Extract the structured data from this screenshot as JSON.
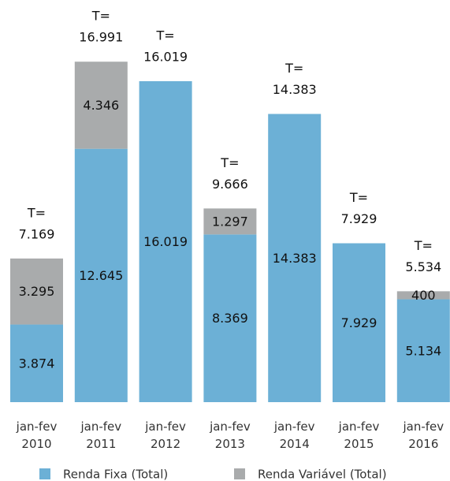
{
  "chart_data": {
    "type": "stacked_bar",
    "categories": [
      "jan-fev 2010",
      "jan-fev 2011",
      "jan-fev 2012",
      "jan-fev 2013",
      "jan-fev 2014",
      "jan-fev 2015",
      "jan-fev 2016"
    ],
    "series": [
      {
        "name": "Renda Fixa (Total)",
        "color": "#6cb0d6",
        "values": [
          3874,
          12645,
          16019,
          8369,
          14383,
          7929,
          5134
        ],
        "value_labels": [
          "3.874",
          "12.645",
          "16.019",
          "8.369",
          "14.383",
          "7.929",
          "5.134"
        ]
      },
      {
        "name": "Renda Variável (Total)",
        "color": "#a9abac",
        "values": [
          3295,
          4346,
          null,
          1297,
          null,
          null,
          400
        ],
        "value_labels": [
          "3.295",
          "4.346",
          null,
          "1.297",
          null,
          null,
          "400"
        ]
      }
    ],
    "totals": {
      "prefix": "T=",
      "values": [
        7169,
        16991,
        16019,
        9666,
        14383,
        7929,
        5534
      ],
      "value_labels": [
        "7.169",
        "16.991",
        "16.019",
        "9.666",
        "14.383",
        "7.929",
        "5.534"
      ]
    },
    "ylim": [
      0,
      17000
    ]
  }
}
